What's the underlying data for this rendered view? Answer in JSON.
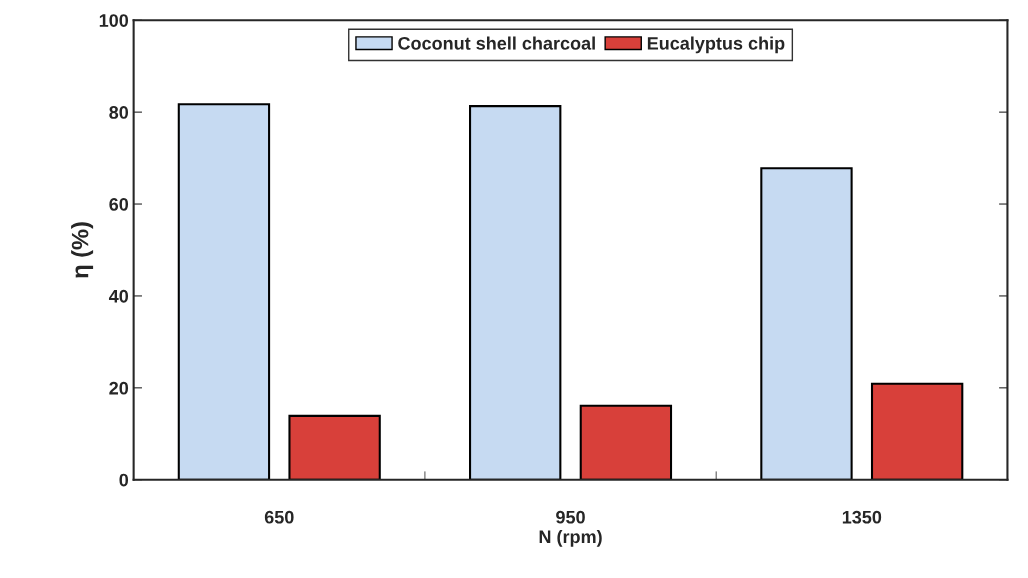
{
  "chart_data": {
    "type": "bar",
    "xlabel": "N (rpm)",
    "ylabel": "η (%)",
    "categories": [
      "650",
      "950",
      "1350"
    ],
    "series": [
      {
        "name": "Coconut shell charcoal",
        "color": "#c6daf2",
        "values": [
          81.7,
          81.3,
          67.8
        ]
      },
      {
        "name": "Eucalyptus chip",
        "color": "#d8403a",
        "values": [
          13.9,
          16.1,
          20.9
        ]
      }
    ],
    "ylim": [
      0,
      100
    ],
    "yticks": [
      0,
      20,
      40,
      60,
      80,
      100
    ],
    "grid": false,
    "legend": "top"
  }
}
